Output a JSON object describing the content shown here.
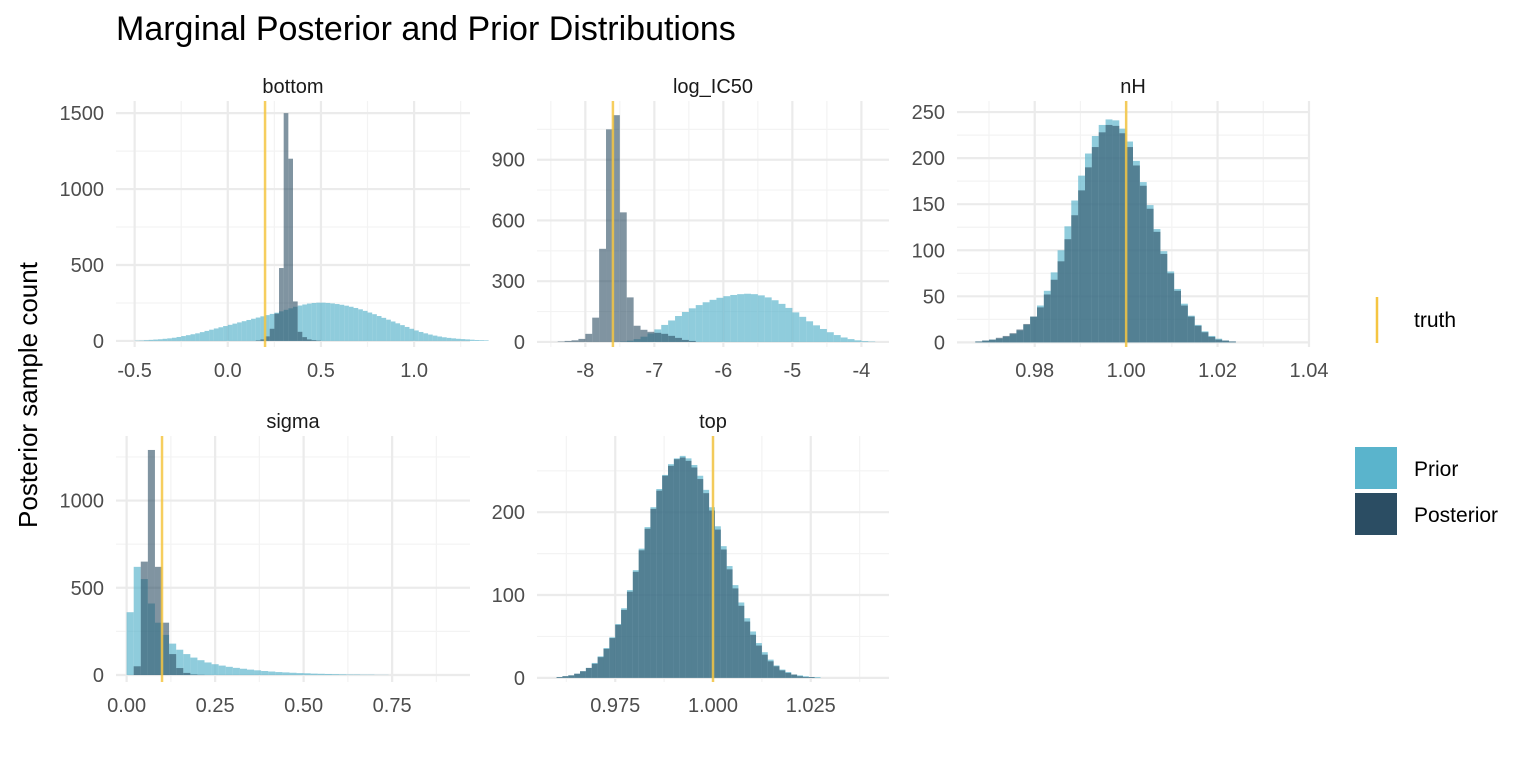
{
  "chart_data": {
    "type": "bar",
    "title": "Marginal Posterior and Prior Distributions",
    "ylabel": "Posterior sample count",
    "legend": {
      "placement": "right",
      "truth_label": "truth",
      "fill_entries": [
        "Prior",
        "Posterior"
      ]
    },
    "colors": {
      "prior": "#5ab4cc",
      "posterior": "#2b4d63",
      "truth": "#f5c542",
      "grid": "#ebebeb"
    },
    "grid": true,
    "panels": [
      {
        "name": "bottom",
        "truth": 0.2,
        "xlim": [
          -0.6,
          1.3
        ],
        "ylim": [
          -40,
          1580
        ],
        "xticks": [
          -0.5,
          0,
          0.5,
          1.0
        ],
        "xtick_labels": [
          "-0.5",
          "0.0",
          "0.5",
          "1.0"
        ],
        "yticks": [
          0,
          500,
          1000,
          1500
        ],
        "ytick_labels": [
          "0",
          "500",
          "1000",
          "1500"
        ],
        "x_start": -0.5,
        "bin_width": 0.025,
        "prior": [
          2,
          3,
          5,
          7,
          9,
          11,
          14,
          17,
          21,
          26,
          32,
          38,
          44,
          50,
          58,
          66,
          74,
          82,
          90,
          98,
          106,
          114,
          122,
          130,
          138,
          146,
          154,
          162,
          170,
          178,
          186,
          195,
          205,
          215,
          225,
          233,
          240,
          246,
          250,
          252,
          252,
          250,
          247,
          243,
          238,
          232,
          225,
          217,
          208,
          198,
          187,
          176,
          164,
          152,
          140,
          128,
          116,
          104,
          92,
          80,
          69,
          59,
          50,
          42,
          35,
          29,
          24,
          20,
          17,
          14,
          12,
          10,
          8,
          6,
          5,
          4
        ],
        "posterior": [
          0,
          0,
          0,
          0,
          0,
          0,
          0,
          0,
          0,
          0,
          0,
          0,
          0,
          0,
          0,
          0,
          0,
          0,
          0,
          0,
          0,
          0,
          0,
          0,
          0,
          0,
          3,
          10,
          30,
          80,
          180,
          480,
          1500,
          1200,
          260,
          60,
          25,
          10,
          5,
          2,
          0,
          0,
          0,
          0,
          0,
          0,
          0,
          0,
          0,
          0,
          0,
          0,
          0,
          0,
          0,
          0,
          0,
          0,
          0,
          0,
          0,
          0,
          0,
          0,
          0,
          0,
          0,
          0,
          0,
          0,
          0,
          0,
          0,
          0,
          0,
          0
        ]
      },
      {
        "name": "log_IC50",
        "truth": -7.6,
        "xlim": [
          -8.7,
          -3.6
        ],
        "ylim": [
          -25,
          1190
        ],
        "xticks": [
          -8,
          -7,
          -6,
          -5,
          -4
        ],
        "xtick_labels": [
          "-8",
          "-7",
          "-6",
          "-5",
          "-4"
        ],
        "yticks": [
          0,
          300,
          600,
          900
        ],
        "ytick_labels": [
          "0",
          "300",
          "600",
          "900"
        ],
        "x_start": -8.4,
        "bin_width": 0.1,
        "prior": [
          0,
          0,
          0,
          0,
          0,
          0,
          0,
          0,
          0,
          2,
          6,
          14,
          26,
          42,
          62,
          84,
          106,
          128,
          148,
          166,
          182,
          196,
          208,
          218,
          226,
          232,
          236,
          238,
          236,
          230,
          220,
          206,
          188,
          168,
          146,
          124,
          102,
          82,
          64,
          48,
          34,
          22,
          14,
          8,
          4,
          2
        ],
        "posterior": [
          2,
          5,
          8,
          15,
          40,
          120,
          460,
          1050,
          1120,
          640,
          220,
          80,
          60,
          50,
          45,
          40,
          30,
          20,
          10,
          5,
          0,
          0,
          0,
          0,
          0,
          0,
          0,
          0,
          0,
          0,
          0,
          0,
          0,
          0,
          0,
          0,
          0,
          0,
          0,
          0,
          0,
          0,
          0,
          0,
          0,
          0
        ]
      },
      {
        "name": "nH",
        "truth": 1.0,
        "xlim": [
          0.963,
          1.04
        ],
        "ylim": [
          -5,
          262
        ],
        "xticks": [
          0.98,
          1.0,
          1.02,
          1.04
        ],
        "xtick_labels": [
          "0.98",
          "1.00",
          "1.02",
          "1.04"
        ],
        "yticks": [
          0,
          50,
          100,
          150,
          200,
          250
        ],
        "ytick_labels": [
          "0",
          "50",
          "100",
          "150",
          "200",
          "250"
        ],
        "x_start": 0.967,
        "bin_width": 0.0015,
        "prior": [
          1,
          2,
          3,
          4,
          6,
          9,
          13,
          19,
          28,
          40,
          56,
          76,
          100,
          126,
          154,
          181,
          205,
          224,
          236,
          242,
          241,
          232,
          218,
          197,
          174,
          149,
          123,
          99,
          77,
          58,
          42,
          29,
          19,
          12,
          7,
          4,
          2,
          1
        ],
        "posterior": [
          1,
          2,
          3,
          5,
          7,
          10,
          14,
          20,
          28,
          38,
          52,
          68,
          88,
          112,
          138,
          165,
          190,
          212,
          228,
          236,
          235,
          227,
          212,
          192,
          170,
          145,
          120,
          96,
          75,
          56,
          40,
          28,
          18,
          11,
          6,
          3,
          2,
          1
        ]
      },
      {
        "name": "sigma",
        "truth": 0.1,
        "xlim": [
          -0.03,
          0.97
        ],
        "ylim": [
          -40,
          1370
        ],
        "xticks": [
          0,
          0.25,
          0.5,
          0.75
        ],
        "xtick_labels": [
          "0.00",
          "0.25",
          "0.50",
          "0.75"
        ],
        "yticks": [
          0,
          500,
          1000
        ],
        "ytick_labels": [
          "0",
          "500",
          "1000"
        ],
        "x_start": 0.0,
        "bin_width": 0.02,
        "prior": [
          360,
          620,
          550,
          410,
          300,
          230,
          180,
          145,
          120,
          100,
          85,
          72,
          62,
          54,
          47,
          41,
          36,
          31,
          27,
          23,
          20,
          17,
          15,
          13,
          11,
          10,
          8,
          7,
          6,
          5,
          4,
          3,
          3,
          2,
          2,
          1,
          1
        ],
        "posterior": [
          0,
          50,
          650,
          1290,
          620,
          300,
          120,
          40,
          12,
          3,
          1,
          0,
          0,
          0,
          0,
          0,
          0,
          0,
          0,
          0,
          0,
          0,
          0,
          0,
          0,
          0,
          0,
          0,
          0,
          0,
          0,
          0,
          0,
          0,
          0,
          0,
          0
        ]
      },
      {
        "name": "top",
        "truth": 1.0,
        "xlim": [
          0.955,
          1.045
        ],
        "ylim": [
          -5,
          292
        ],
        "xticks": [
          0.975,
          1.0,
          1.025
        ],
        "xtick_labels": [
          "0.975",
          "1.000",
          "1.025"
        ],
        "yticks": [
          0,
          100,
          200
        ],
        "ytick_labels": [
          "0",
          "100",
          "200"
        ],
        "x_start": 0.96,
        "bin_width": 0.0015,
        "prior": [
          1,
          2,
          3,
          5,
          8,
          12,
          18,
          26,
          36,
          49,
          65,
          84,
          106,
          130,
          156,
          182,
          206,
          228,
          245,
          258,
          265,
          268,
          265,
          257,
          244,
          227,
          206,
          183,
          159,
          135,
          112,
          91,
          72,
          56,
          42,
          31,
          22,
          15,
          10,
          7,
          4,
          3,
          2,
          1,
          1
        ],
        "posterior": [
          1,
          2,
          3,
          5,
          8,
          12,
          17,
          25,
          35,
          48,
          64,
          82,
          104,
          128,
          154,
          180,
          204,
          226,
          244,
          256,
          264,
          266,
          262,
          254,
          240,
          223,
          202,
          179,
          155,
          131,
          108,
          87,
          68,
          52,
          39,
          28,
          20,
          14,
          9,
          6,
          4,
          2,
          1,
          1,
          0
        ]
      }
    ]
  }
}
